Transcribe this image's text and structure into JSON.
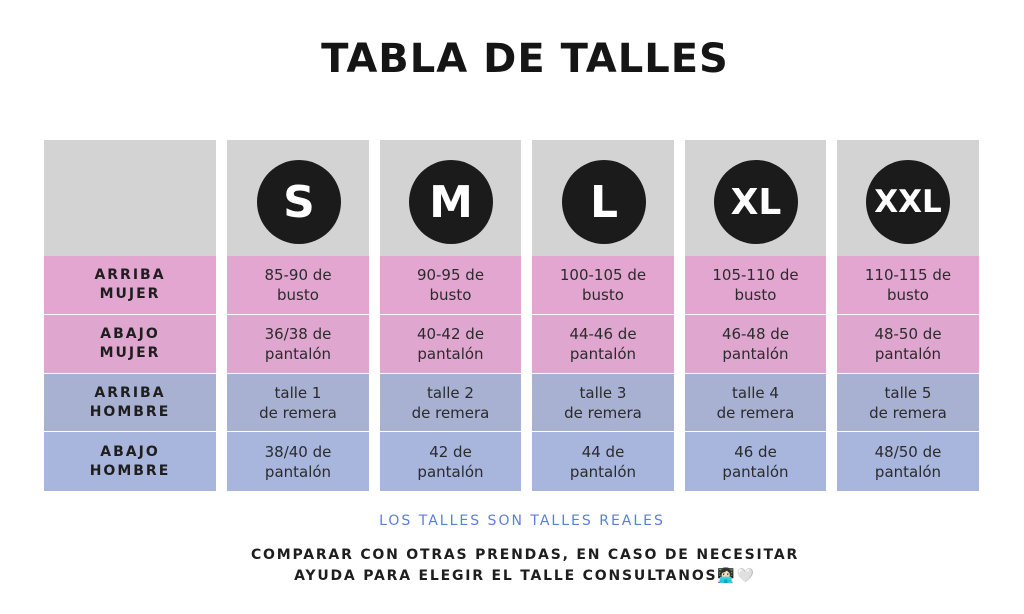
{
  "title": "TABLA DE TALLES",
  "row_labels": [
    "ARRIBA\nMUJER",
    "ABAJO\nMUJER",
    "ARRIBA\nHOMBRE",
    "ABAJO\nHOMBRE"
  ],
  "sizes": [
    {
      "label": "S",
      "values": [
        "85-90 de\nbusto",
        "36/38 de\npantalón",
        "talle 1\nde remera",
        "38/40 de\npantalón"
      ]
    },
    {
      "label": "M",
      "values": [
        "90-95 de\nbusto",
        "40-42 de\npantalón",
        "talle 2\nde remera",
        "42 de\npantalón"
      ]
    },
    {
      "label": "L",
      "values": [
        "100-105 de\nbusto",
        "44-46 de\npantalón",
        "talle 3\nde remera",
        "44 de\npantalón"
      ]
    },
    {
      "label": "XL",
      "values": [
        "105-110 de\nbusto",
        "46-48 de\npantalón",
        "talle 4\nde remera",
        "46 de\npantalón"
      ]
    },
    {
      "label": "XXL",
      "values": [
        "110-115 de\nbusto",
        "48-50 de\npantalón",
        "talle 5\nde remera",
        "48/50 de\npantalón"
      ]
    }
  ],
  "footer": {
    "note": "LOS TALLES SON TALLES REALES",
    "line1": "COMPARAR CON OTRAS PRENDAS, EN CASO DE NECESITAR",
    "line2": "AYUDA PARA ELEGIR EL TALLE CONSULTANOS",
    "emoji": "👩🏻‍💻🤍"
  },
  "colors": {
    "header_gray": "#d3d3d3",
    "pink_rows": "#e2a6d0",
    "blue_rows": "#a8b1d2",
    "badge": "#1b1b1b",
    "note_blue": "#5b7fd8"
  }
}
